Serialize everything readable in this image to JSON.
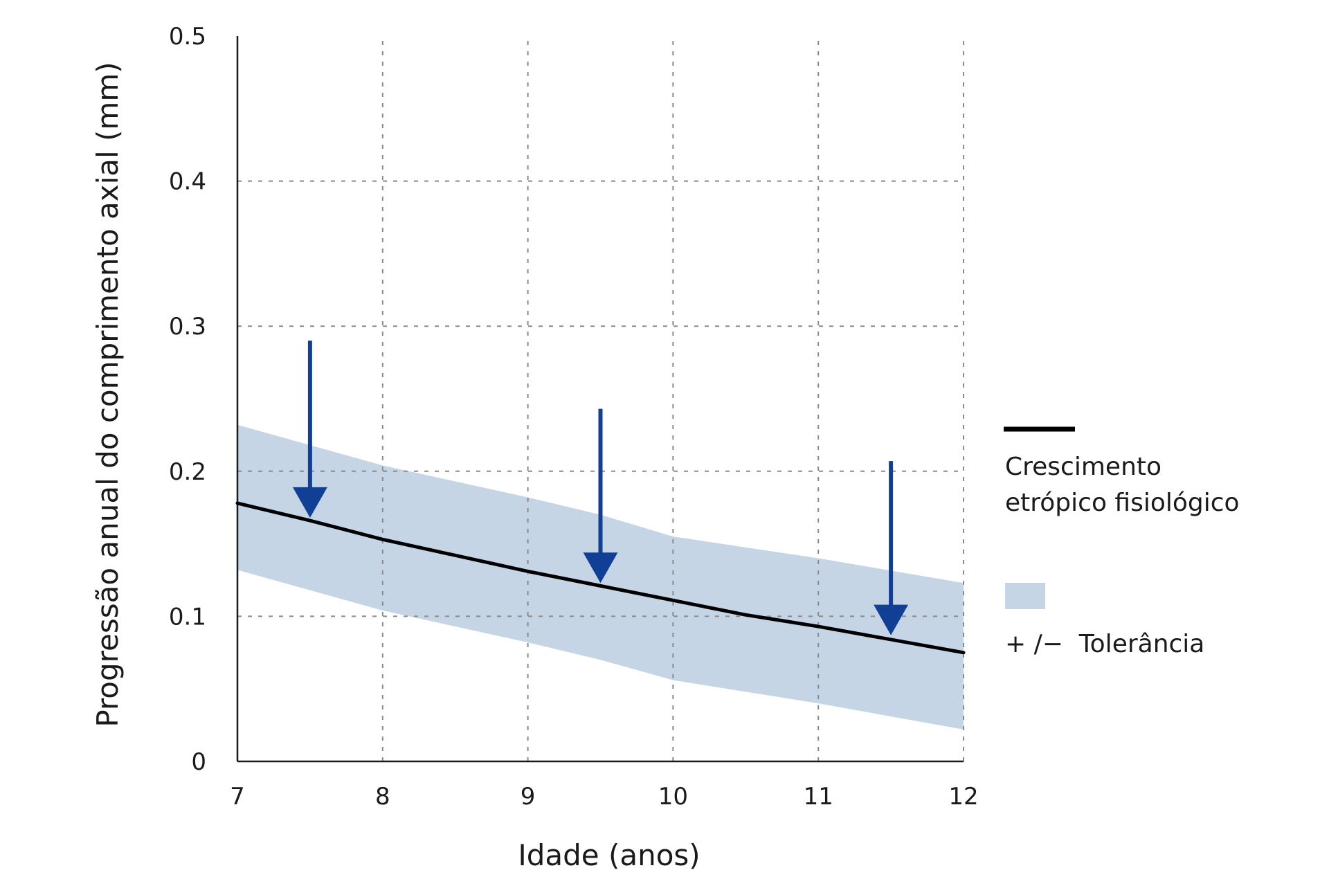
{
  "chart_data": {
    "type": "line",
    "xlabel": "Idade (anos)",
    "ylabel": "Progressão anual do comprimento axial (mm)",
    "xlim": [
      7,
      12
    ],
    "ylim": [
      0,
      0.5
    ],
    "x_ticks": [
      7,
      8,
      9,
      10,
      11,
      12
    ],
    "x_tick_labels": [
      "7",
      "8",
      "9",
      "10",
      "11",
      "12"
    ],
    "y_ticks": [
      0,
      0.1,
      0.2,
      0.3,
      0.4,
      0.5
    ],
    "y_tick_labels": [
      "0",
      "0.1",
      "0.2",
      "0.3",
      "0.4",
      "0.5"
    ],
    "grid": true,
    "legend_position": "right",
    "series": [
      {
        "name": "Crescimento etrópico fisiológico",
        "name_lines": [
          "Crescimento",
          "etrópico fisiológico"
        ],
        "x": [
          7,
          7.5,
          8,
          8.5,
          9,
          9.5,
          10,
          10.5,
          11,
          11.5,
          12
        ],
        "y": [
          0.178,
          0.166,
          0.153,
          0.142,
          0.131,
          0.121,
          0.111,
          0.101,
          0.093,
          0.084,
          0.075
        ],
        "color": "#000000"
      }
    ],
    "band": {
      "name": "+ /−  Tolerância",
      "x": [
        7,
        8,
        9,
        9.5,
        10,
        11,
        12
      ],
      "upper": [
        0.232,
        0.204,
        0.182,
        0.17,
        0.155,
        0.14,
        0.123
      ],
      "lower": [
        0.132,
        0.104,
        0.082,
        0.07,
        0.056,
        0.04,
        0.022
      ],
      "color": "#c5d5e6"
    },
    "annotations": {
      "arrows": [
        {
          "x": 7.5,
          "y_start": 0.29,
          "y_end": 0.168
        },
        {
          "x": 9.5,
          "y_start": 0.243,
          "y_end": 0.123
        },
        {
          "x": 11.5,
          "y_start": 0.207,
          "y_end": 0.087
        }
      ],
      "arrow_color": "#123f96"
    },
    "colors": {
      "grid": "#8a8a8a",
      "axis": "#1a1a1a"
    }
  }
}
